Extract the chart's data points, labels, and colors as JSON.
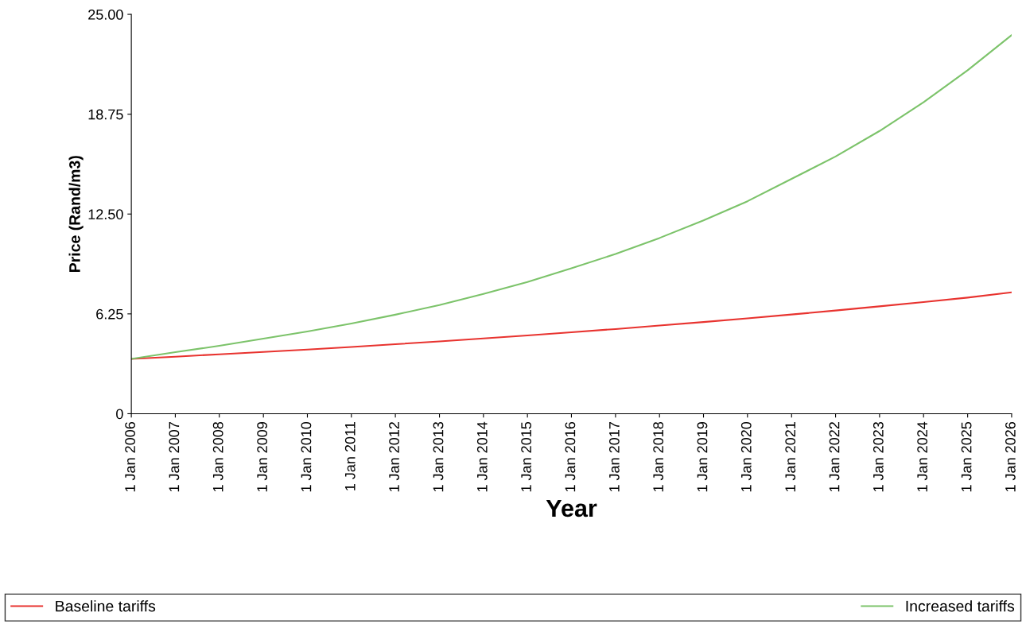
{
  "chart_data": {
    "type": "line",
    "xlabel": "Year",
    "ylabel": "Price (Rand/m3)",
    "x": [
      "2006-01-01",
      "2007-01-01",
      "2008-01-01",
      "2009-01-01",
      "2010-01-01",
      "2011-01-01",
      "2012-01-01",
      "2013-01-01",
      "2014-01-01",
      "2015-01-01",
      "2016-01-01",
      "2017-01-01",
      "2018-01-01",
      "2019-01-01",
      "2020-01-01",
      "2021-01-01",
      "2022-01-01",
      "2023-01-01",
      "2024-01-01",
      "2025-01-01",
      "2026-01-01"
    ],
    "series": [
      {
        "name": "Baseline tariffs",
        "color": "#e8332f",
        "values": [
          3.43,
          3.57,
          3.72,
          3.87,
          4.02,
          4.18,
          4.35,
          4.53,
          4.71,
          4.9,
          5.1,
          5.3,
          5.52,
          5.74,
          5.97,
          6.21,
          6.46,
          6.72,
          6.99,
          7.27,
          7.6
        ]
      },
      {
        "name": "Increased tariffs",
        "color": "#7cc36a",
        "values": [
          3.43,
          3.85,
          4.25,
          4.7,
          5.15,
          5.65,
          6.2,
          6.8,
          7.5,
          8.25,
          9.1,
          10.0,
          11.0,
          12.1,
          13.3,
          14.7,
          16.1,
          17.7,
          19.5,
          21.5,
          23.7
        ]
      }
    ],
    "xlim": [
      "2006-01-01",
      "2026-01-01"
    ],
    "xticks": [
      {
        "value": "2006-01-01",
        "label": "1 Jan 2006"
      },
      {
        "value": "2007-01-01",
        "label": "1 Jan 2007"
      },
      {
        "value": "2008-01-01",
        "label": "1 Jan 2008"
      },
      {
        "value": "2009-01-01",
        "label": "1 Jan 2009"
      },
      {
        "value": "2010-01-01",
        "label": "1 Jan 2010"
      },
      {
        "value": "2011-01-01",
        "label": "1 Jan 2011"
      },
      {
        "value": "2012-01-01",
        "label": "1 Jan 2012"
      },
      {
        "value": "2013-01-01",
        "label": "1 Jan 2013"
      },
      {
        "value": "2014-01-01",
        "label": "1 Jan 2014"
      },
      {
        "value": "2015-01-01",
        "label": "1 Jan 2015"
      },
      {
        "value": "2016-01-01",
        "label": "1 Jan 2016"
      },
      {
        "value": "2017-01-01",
        "label": "1 Jan 2017"
      },
      {
        "value": "2018-01-01",
        "label": "1 Jan 2018"
      },
      {
        "value": "2019-01-01",
        "label": "1 Jan 2019"
      },
      {
        "value": "2020-01-01",
        "label": "1 Jan 2020"
      },
      {
        "value": "2021-01-01",
        "label": "1 Jan 2021"
      },
      {
        "value": "2022-01-01",
        "label": "1 Jan 2022"
      },
      {
        "value": "2023-01-01",
        "label": "1 Jan 2023"
      },
      {
        "value": "2024-01-01",
        "label": "1 Jan 2024"
      },
      {
        "value": "2025-01-01",
        "label": "1 Jan 2025"
      },
      {
        "value": "2026-01-01",
        "label": "1 Jan 2026"
      }
    ],
    "ylim": [
      0,
      25
    ],
    "yticks": [
      0,
      6.25,
      {
        "value": 12.5,
        "label": "12.50"
      },
      18.75,
      {
        "value": 25,
        "label": "25.00"
      }
    ],
    "grid": false,
    "legend": "bottom",
    "marker": "none",
    "line_style": "solid"
  }
}
